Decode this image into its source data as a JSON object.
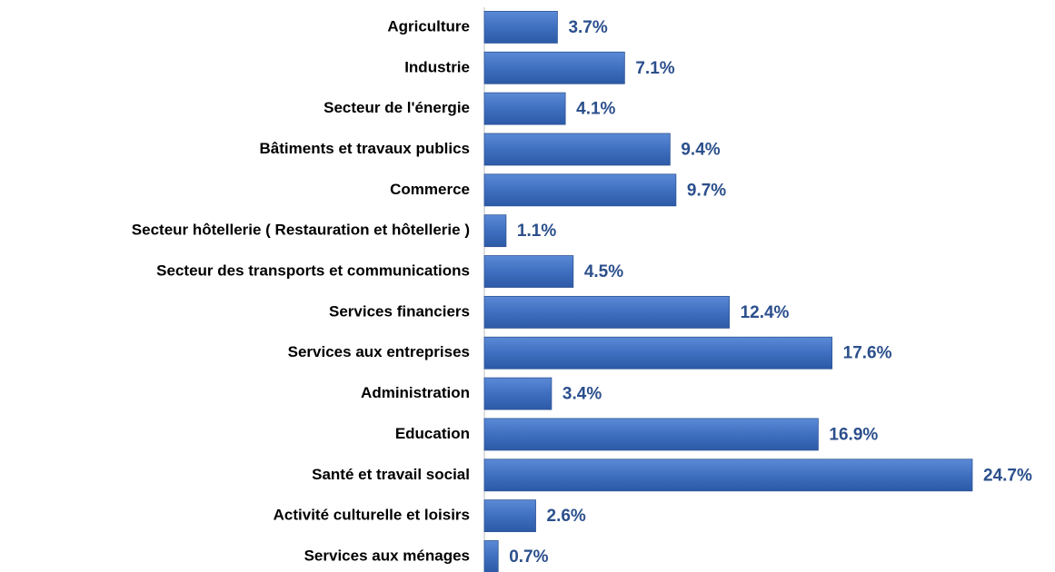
{
  "chart_data": {
    "type": "hbar",
    "color": "#4472c4",
    "categories": [
      "Agriculture",
      "Industrie",
      "Secteur de l'énergie",
      "Bâtiments et travaux publics",
      "Commerce",
      "Secteur hôtellerie ( Restauration et hôtellerie )",
      "Secteur des transports et communications",
      "Services financiers",
      "Services aux entreprises",
      "Administration",
      "Education",
      "Santé et travail social",
      "Activité culturelle et loisirs",
      "Services aux ménages"
    ],
    "values": [
      3.7,
      7.1,
      4.1,
      9.4,
      9.7,
      1.1,
      4.5,
      12.4,
      17.6,
      3.4,
      16.9,
      24.7,
      2.6,
      0.7
    ],
    "value_labels": [
      "3.7%",
      "7.1%",
      "4.1%",
      "9.4%",
      "9.7%",
      "1.1%",
      "4.5%",
      "12.4%",
      "17.6%",
      "3.4%",
      "16.9%",
      "24.7%",
      "2.6%",
      "0.7%"
    ]
  }
}
